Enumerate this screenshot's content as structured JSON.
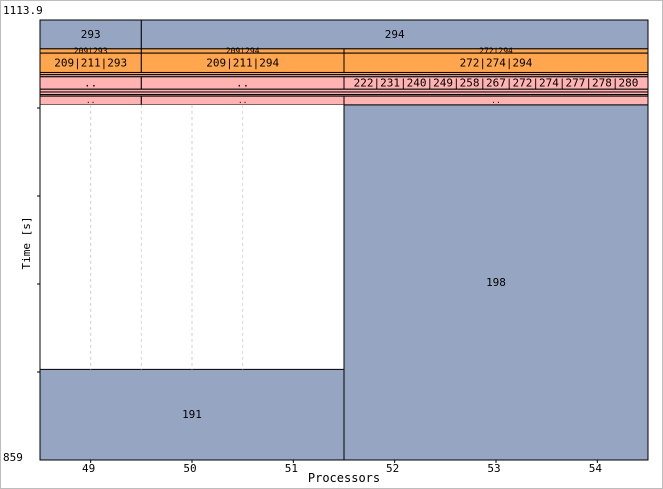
{
  "chart_data": {
    "type": "gantt",
    "xlabel": "Processors",
    "ylabel": "Time [s]",
    "y_top_label": "1113.9",
    "y_bottom_label": "859",
    "columns": [
      "49",
      "50",
      "51",
      "52",
      "53",
      "54"
    ],
    "colors": {
      "slate": "#96a6c2",
      "orange": "#ffa64f",
      "pink": "#ffb3b3",
      "white": "#ffffff"
    },
    "blocks": [
      {
        "label": "293",
        "col_start": 0,
        "col_end": 1,
        "t_start": 1097.2,
        "t_end": 1113.9,
        "color": "slate",
        "size": "large"
      },
      {
        "label": "294",
        "col_start": 1,
        "col_end": 6,
        "t_start": 1097.2,
        "t_end": 1113.9,
        "color": "slate",
        "size": "large"
      },
      {
        "label": "209|293",
        "col_start": 0,
        "col_end": 1,
        "t_start": 1094.7,
        "t_end": 1097.2,
        "color": "orange",
        "size": "small"
      },
      {
        "label": "209|294",
        "col_start": 1,
        "col_end": 3,
        "t_start": 1094.7,
        "t_end": 1097.2,
        "color": "orange",
        "size": "small"
      },
      {
        "label": "272|294",
        "col_start": 3,
        "col_end": 6,
        "t_start": 1094.7,
        "t_end": 1097.2,
        "color": "orange",
        "size": "small"
      },
      {
        "label": "209|211|293",
        "col_start": 0,
        "col_end": 1,
        "t_start": 1083.5,
        "t_end": 1094.7,
        "color": "orange",
        "size": "medium"
      },
      {
        "label": "209|211|294",
        "col_start": 1,
        "col_end": 3,
        "t_start": 1083.5,
        "t_end": 1094.7,
        "color": "orange",
        "size": "medium"
      },
      {
        "label": "272|274|294",
        "col_start": 3,
        "col_end": 6,
        "t_start": 1083.5,
        "t_end": 1094.7,
        "color": "orange",
        "size": "medium"
      },
      {
        "label": "",
        "col_start": 0,
        "col_end": 6,
        "t_start": 1082.2,
        "t_end": 1083.5,
        "color": "orange",
        "size": "small"
      },
      {
        "label": "",
        "col_start": 0,
        "col_end": 6,
        "t_start": 1081.0,
        "t_end": 1082.2,
        "color": "pink",
        "size": "small"
      },
      {
        "label": "..",
        "col_start": 0,
        "col_end": 1,
        "t_start": 1073.8,
        "t_end": 1081.0,
        "color": "pink",
        "size": "medium"
      },
      {
        "label": "..",
        "col_start": 1,
        "col_end": 3,
        "t_start": 1073.8,
        "t_end": 1081.0,
        "color": "pink",
        "size": "medium"
      },
      {
        "label": "222|231|240|249|258|267|272|274|277|278|280",
        "col_start": 3,
        "col_end": 6,
        "t_start": 1073.8,
        "t_end": 1081.0,
        "color": "pink",
        "size": "medium"
      },
      {
        "label": "",
        "col_start": 0,
        "col_end": 6,
        "t_start": 1072.2,
        "t_end": 1073.8,
        "color": "pink",
        "size": "small"
      },
      {
        "label": "",
        "col_start": 0,
        "col_end": 6,
        "t_start": 1070.7,
        "t_end": 1072.2,
        "color": "pink",
        "size": "small"
      },
      {
        "label": "",
        "col_start": 0,
        "col_end": 6,
        "t_start": 1069.8,
        "t_end": 1070.7,
        "color": "pink",
        "size": "small"
      },
      {
        "label": "..",
        "col_start": 0,
        "col_end": 1,
        "t_start": 1064.7,
        "t_end": 1069.8,
        "color": "pink",
        "size": "small"
      },
      {
        "label": "..",
        "col_start": 1,
        "col_end": 3,
        "t_start": 1064.7,
        "t_end": 1069.8,
        "color": "pink",
        "size": "small"
      },
      {
        "label": "..",
        "col_start": 3,
        "col_end": 6,
        "t_start": 1064.7,
        "t_end": 1069.8,
        "color": "pink",
        "size": "small"
      },
      {
        "label": "",
        "col_start": 0,
        "col_end": 3,
        "t_start": 911.5,
        "t_end": 1064.7,
        "color": "white",
        "size": "medium"
      },
      {
        "label": "198",
        "col_start": 3,
        "col_end": 6,
        "t_start": 859,
        "t_end": 1064.7,
        "color": "slate",
        "size": "medium"
      },
      {
        "label": "191",
        "col_start": 0,
        "col_end": 3,
        "t_start": 859,
        "t_end": 911.5,
        "color": "slate",
        "size": "medium"
      }
    ]
  }
}
